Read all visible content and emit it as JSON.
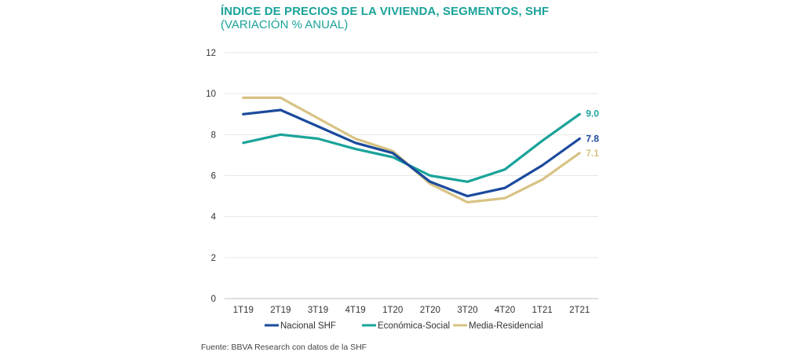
{
  "chart_data": {
    "type": "line",
    "title": "ÍNDICE DE PRECIOS DE LA VIVIENDA, SEGMENTOS, SHF",
    "subtitle": "(VARIACIÓN % ANUAL)",
    "categories": [
      "1T19",
      "2T19",
      "3T19",
      "4T19",
      "1T20",
      "2T20",
      "3T20",
      "4T20",
      "1T21",
      "2T21"
    ],
    "ylim": [
      0,
      12
    ],
    "yticks": [
      "0",
      "2",
      "4",
      "6",
      "8",
      "10",
      "12"
    ],
    "grid": true,
    "legend_position": "bottom",
    "series": [
      {
        "name": "Nacional SHF",
        "color": "#1a4a9c",
        "values": [
          9.0,
          9.2,
          8.4,
          7.6,
          7.1,
          5.7,
          5.0,
          5.4,
          6.5,
          7.8
        ],
        "end_label": "7.8"
      },
      {
        "name": "Económica-Social",
        "color": "#1aa39a",
        "values": [
          7.6,
          8.0,
          7.8,
          7.3,
          6.9,
          6.0,
          5.7,
          6.3,
          7.7,
          9.0
        ],
        "end_label": "9.0"
      },
      {
        "name": "Media-Residencial",
        "color": "#d8c384",
        "values": [
          9.8,
          9.8,
          8.8,
          7.8,
          7.2,
          5.6,
          4.7,
          4.9,
          5.8,
          7.1
        ],
        "end_label": "7.1"
      }
    ],
    "source": "Fuente: BBVA Research con datos de la SHF"
  }
}
